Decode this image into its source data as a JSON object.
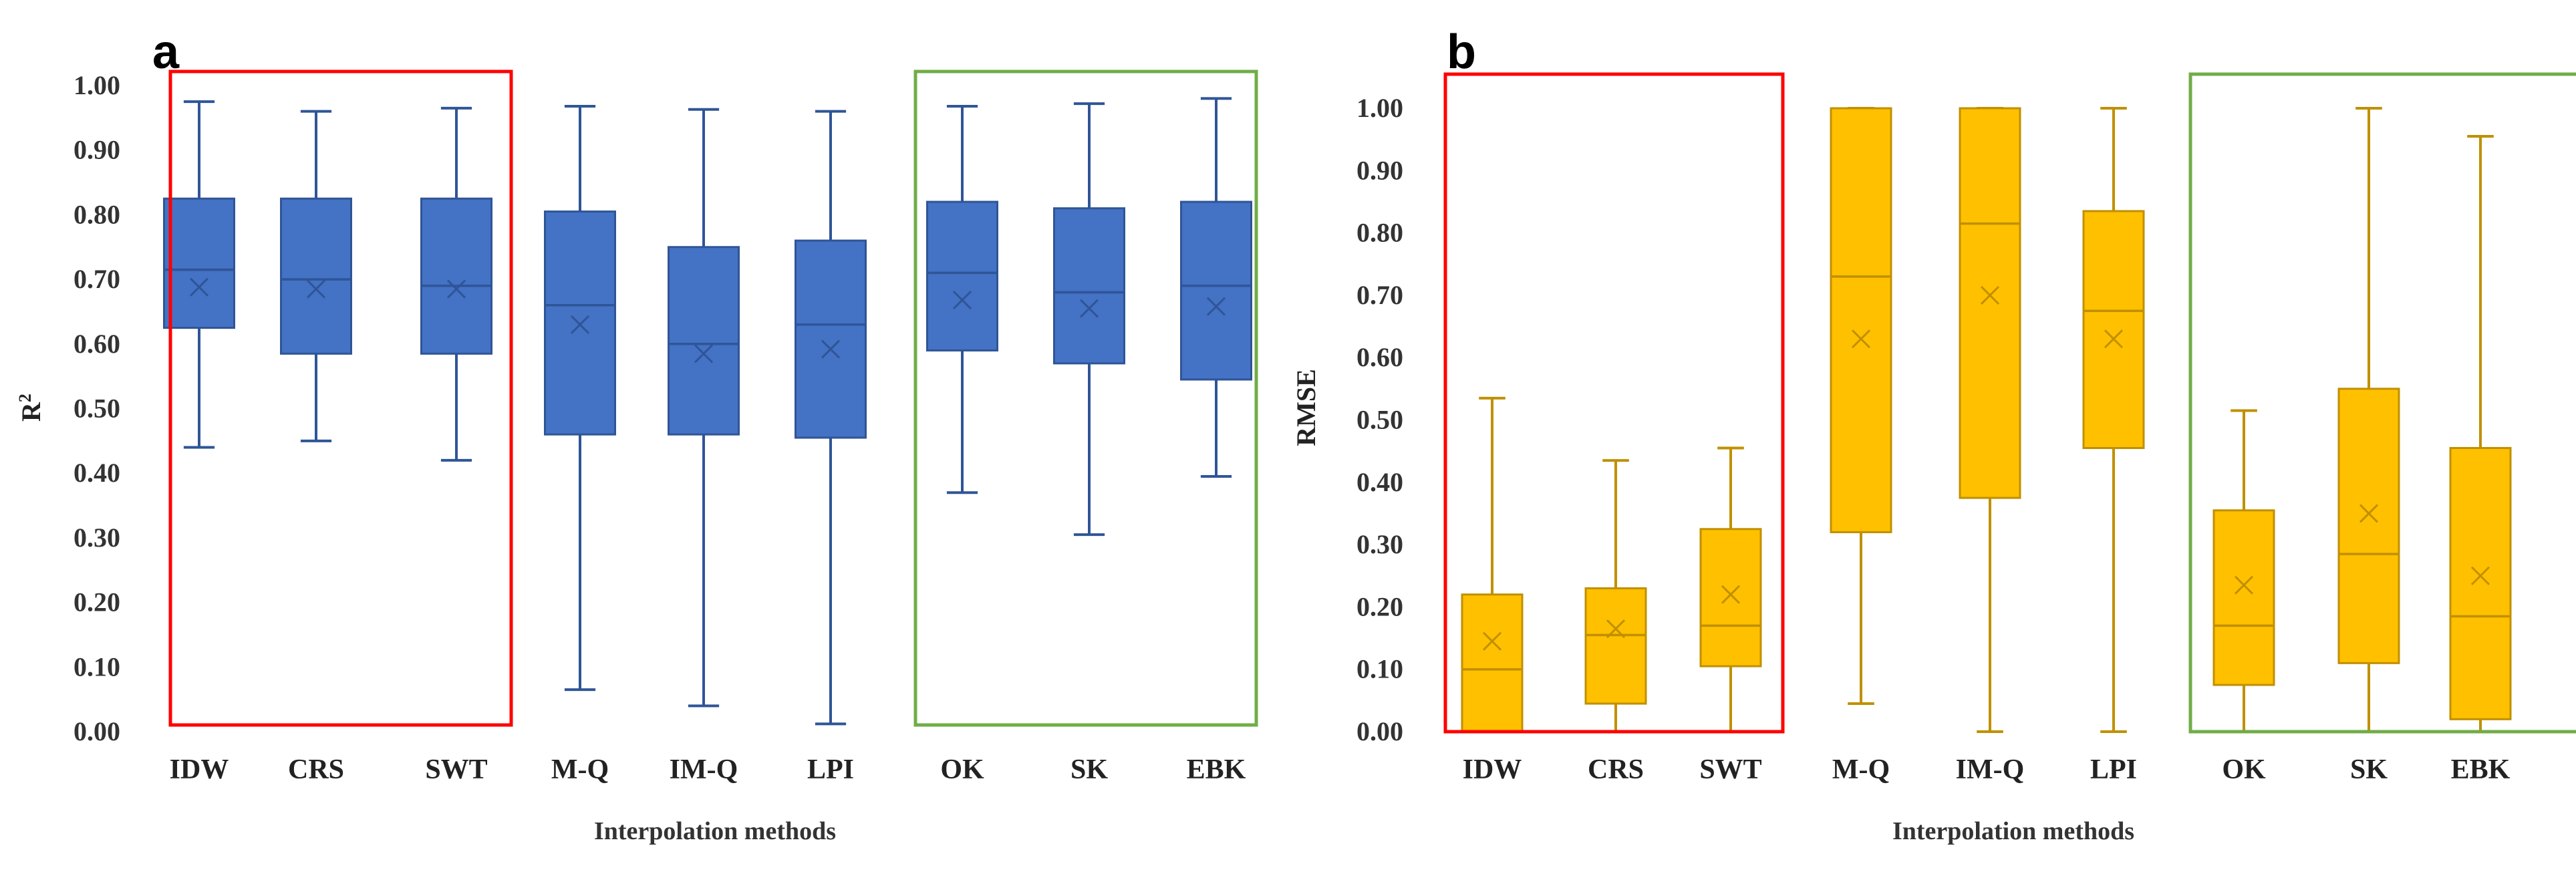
{
  "chart_data": [
    {
      "type": "box",
      "panel_label": "a",
      "title": "",
      "xlabel": "Interpolation methods",
      "ylabel": "R",
      "ylabel_superscript": "2",
      "ylim": [
        0,
        1
      ],
      "yticks": [
        "0.00",
        "0.10",
        "0.20",
        "0.30",
        "0.40",
        "0.50",
        "0.60",
        "0.70",
        "0.80",
        "0.90",
        "1.00"
      ],
      "categories": [
        "IDW",
        "CRS",
        "SWT",
        "M-Q",
        "IM-Q",
        "LPI",
        "OK",
        "SK",
        "EBK"
      ],
      "color": "#4472C4",
      "edge_color": "#2F5597",
      "boxes": [
        {
          "min": 0.44,
          "q1": 0.625,
          "median": 0.715,
          "q3": 0.825,
          "max": 0.975,
          "mean": 0.688
        },
        {
          "min": 0.45,
          "q1": 0.585,
          "median": 0.7,
          "q3": 0.825,
          "max": 0.96,
          "mean": 0.685
        },
        {
          "min": 0.42,
          "q1": 0.585,
          "median": 0.69,
          "q3": 0.825,
          "max": 0.965,
          "mean": 0.685
        },
        {
          "min": 0.065,
          "q1": 0.46,
          "median": 0.66,
          "q3": 0.805,
          "max": 0.968,
          "mean": 0.63
        },
        {
          "min": 0.04,
          "q1": 0.46,
          "median": 0.6,
          "q3": 0.75,
          "max": 0.963,
          "mean": 0.585
        },
        {
          "min": 0.012,
          "q1": 0.455,
          "median": 0.63,
          "q3": 0.76,
          "max": 0.96,
          "mean": 0.592
        },
        {
          "min": 0.37,
          "q1": 0.59,
          "median": 0.71,
          "q3": 0.82,
          "max": 0.968,
          "mean": 0.668
        },
        {
          "min": 0.305,
          "q1": 0.57,
          "median": 0.68,
          "q3": 0.81,
          "max": 0.972,
          "mean": 0.655
        },
        {
          "min": 0.395,
          "q1": 0.545,
          "median": 0.69,
          "q3": 0.82,
          "max": 0.98,
          "mean": 0.658
        }
      ],
      "highlight_groups": [
        {
          "color": "#FF0000",
          "categories": [
            "IDW",
            "CRS",
            "SWT"
          ]
        },
        {
          "color": "#70AD47",
          "categories": [
            "OK",
            "SK",
            "EBK"
          ]
        }
      ]
    },
    {
      "type": "box",
      "panel_label": "b",
      "title": "",
      "xlabel": "Interpolation methods",
      "ylabel": "RMSE",
      "ylabel_superscript": "",
      "ylim": [
        0,
        1
      ],
      "yticks": [
        "0.00",
        "0.10",
        "0.20",
        "0.30",
        "0.40",
        "0.50",
        "0.60",
        "0.70",
        "0.80",
        "0.90",
        "1.00"
      ],
      "categories": [
        "IDW",
        "CRS",
        "SWT",
        "M-Q",
        "IM-Q",
        "LPI",
        "OK",
        "SK",
        "EBK"
      ],
      "color": "#FFC000",
      "edge_color": "#C09000",
      "boxes": [
        {
          "min": 0.0,
          "q1": 0.0,
          "median": 0.1,
          "q3": 0.22,
          "max": 0.535,
          "mean": 0.145
        },
        {
          "min": 0.0,
          "q1": 0.045,
          "median": 0.155,
          "q3": 0.23,
          "max": 0.435,
          "mean": 0.165
        },
        {
          "min": 0.0,
          "q1": 0.105,
          "median": 0.17,
          "q3": 0.325,
          "max": 0.455,
          "mean": 0.22
        },
        {
          "min": 0.045,
          "q1": 0.32,
          "median": 0.73,
          "q3": 1.0,
          "max": 1.0,
          "mean": 0.63
        },
        {
          "min": 0.0,
          "q1": 0.375,
          "median": 0.815,
          "q3": 1.0,
          "max": 1.0,
          "mean": 0.7
        },
        {
          "min": 0.0,
          "q1": 0.455,
          "median": 0.675,
          "q3": 0.835,
          "max": 1.0,
          "mean": 0.63
        },
        {
          "min": 0.0,
          "q1": 0.075,
          "median": 0.17,
          "q3": 0.355,
          "max": 0.515,
          "mean": 0.235
        },
        {
          "min": 0.0,
          "q1": 0.11,
          "median": 0.285,
          "q3": 0.55,
          "max": 1.0,
          "mean": 0.35
        },
        {
          "min": 0.0,
          "q1": 0.02,
          "median": 0.185,
          "q3": 0.455,
          "max": 0.955,
          "mean": 0.25
        }
      ],
      "highlight_groups": [
        {
          "color": "#FF0000",
          "categories": [
            "IDW",
            "CRS",
            "SWT"
          ]
        },
        {
          "color": "#70AD47",
          "categories": [
            "OK",
            "SK",
            "EBK"
          ]
        }
      ]
    }
  ]
}
